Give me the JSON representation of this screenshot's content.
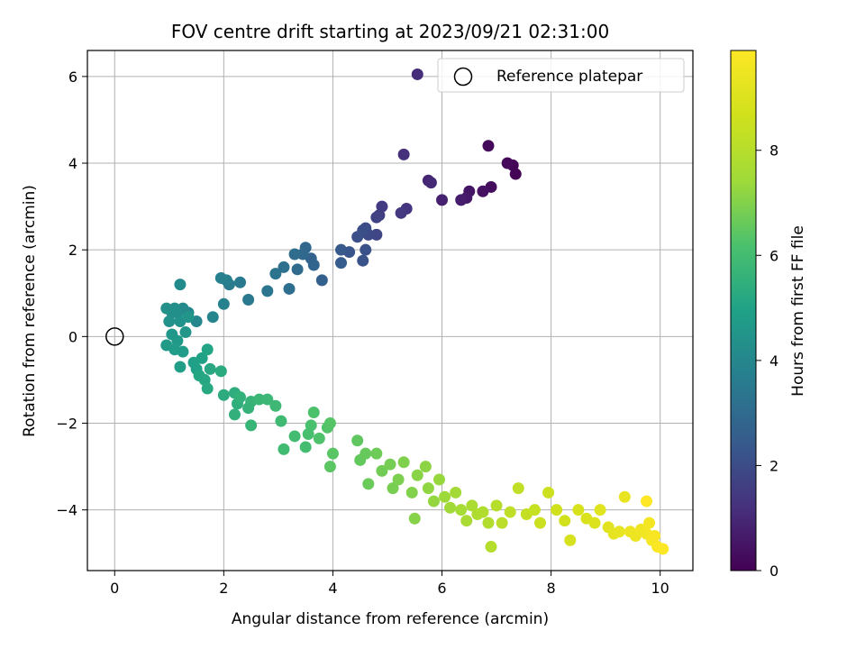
{
  "chart_data": {
    "type": "scatter",
    "title": "FOV centre drift starting at 2023/09/21 02:31:00",
    "xlabel": "Angular distance from reference (arcmin)",
    "ylabel": "Rotation from reference (arcmin)",
    "xlim": [
      -0.5,
      10.6
    ],
    "ylim": [
      -5.4,
      6.6
    ],
    "xticks": [
      0,
      2,
      4,
      6,
      8,
      10
    ],
    "yticks": [
      -4,
      -2,
      0,
      2,
      4,
      6
    ],
    "grid": true,
    "legend": {
      "placement": "top-right",
      "entries": [
        "Reference platepar"
      ]
    },
    "reference_point": {
      "x": 0,
      "y": 0,
      "label": "Reference platepar"
    },
    "colorbar": {
      "label": "Hours from first FF file",
      "range": [
        0,
        9.9
      ],
      "ticks": [
        0,
        2,
        4,
        6,
        8
      ],
      "colormap": "viridis"
    },
    "points": [
      [
        7.3,
        3.95,
        0.05
      ],
      [
        7.35,
        3.75,
        0.1
      ],
      [
        7.2,
        4.0,
        0.15
      ],
      [
        6.85,
        4.4,
        0.2
      ],
      [
        6.9,
        3.45,
        0.3
      ],
      [
        6.75,
        3.35,
        0.4
      ],
      [
        6.5,
        3.35,
        0.5
      ],
      [
        6.45,
        3.2,
        0.6
      ],
      [
        6.35,
        3.15,
        0.7
      ],
      [
        6.0,
        3.15,
        0.8
      ],
      [
        5.75,
        3.6,
        0.9
      ],
      [
        5.8,
        3.55,
        1.0
      ],
      [
        5.55,
        6.05,
        1.1
      ],
      [
        5.3,
        4.2,
        1.2
      ],
      [
        5.35,
        2.95,
        1.3
      ],
      [
        5.25,
        2.85,
        1.4
      ],
      [
        4.9,
        3.0,
        1.5
      ],
      [
        4.85,
        2.8,
        1.6
      ],
      [
        4.8,
        2.75,
        1.7
      ],
      [
        4.8,
        2.35,
        1.8
      ],
      [
        4.65,
        2.35,
        1.9
      ],
      [
        4.6,
        2.5,
        2.0
      ],
      [
        4.55,
        2.45,
        2.05
      ],
      [
        4.45,
        2.3,
        2.1
      ],
      [
        4.6,
        2.0,
        2.15
      ],
      [
        4.55,
        1.75,
        2.2
      ],
      [
        4.3,
        1.95,
        2.3
      ],
      [
        4.15,
        2.0,
        2.4
      ],
      [
        4.15,
        1.7,
        2.5
      ],
      [
        3.8,
        1.3,
        2.6
      ],
      [
        3.6,
        1.8,
        2.7
      ],
      [
        3.65,
        1.65,
        2.8
      ],
      [
        3.5,
        2.05,
        2.85
      ],
      [
        3.45,
        1.9,
        2.9
      ],
      [
        3.35,
        1.55,
        3.0
      ],
      [
        3.3,
        1.9,
        3.05
      ],
      [
        3.2,
        1.1,
        3.1
      ],
      [
        3.1,
        1.6,
        3.2
      ],
      [
        2.95,
        1.45,
        3.3
      ],
      [
        2.8,
        1.05,
        3.4
      ],
      [
        2.45,
        0.85,
        3.5
      ],
      [
        2.3,
        1.25,
        3.55
      ],
      [
        2.1,
        1.2,
        3.6
      ],
      [
        2.05,
        1.3,
        3.7
      ],
      [
        1.95,
        1.35,
        3.75
      ],
      [
        2.0,
        0.75,
        3.8
      ],
      [
        1.8,
        0.45,
        3.9
      ],
      [
        1.5,
        0.35,
        4.0
      ],
      [
        1.35,
        0.55,
        4.05
      ],
      [
        1.25,
        0.65,
        4.1
      ],
      [
        1.2,
        1.2,
        4.15
      ],
      [
        1.15,
        0.55,
        4.2
      ],
      [
        1.1,
        0.65,
        4.25
      ],
      [
        1.05,
        0.55,
        4.3
      ],
      [
        0.95,
        0.65,
        4.35
      ],
      [
        1.0,
        0.35,
        4.4
      ],
      [
        1.2,
        0.35,
        4.45
      ],
      [
        1.35,
        0.45,
        4.5
      ],
      [
        1.3,
        0.1,
        4.55
      ],
      [
        1.05,
        0.05,
        4.6
      ],
      [
        1.15,
        -0.1,
        4.65
      ],
      [
        0.95,
        -0.2,
        4.7
      ],
      [
        1.1,
        -0.3,
        4.75
      ],
      [
        1.25,
        -0.35,
        4.8
      ],
      [
        1.2,
        -0.7,
        4.85
      ],
      [
        1.45,
        -0.6,
        4.9
      ],
      [
        1.5,
        -0.75,
        4.95
      ],
      [
        1.6,
        -0.5,
        5.0
      ],
      [
        1.7,
        -0.3,
        5.05
      ],
      [
        1.55,
        -0.9,
        5.1
      ],
      [
        1.65,
        -1.0,
        5.15
      ],
      [
        1.75,
        -0.75,
        5.2
      ],
      [
        1.7,
        -1.2,
        5.25
      ],
      [
        1.95,
        -0.8,
        5.3
      ],
      [
        2.0,
        -1.35,
        5.35
      ],
      [
        2.2,
        -1.3,
        5.4
      ],
      [
        2.25,
        -1.55,
        5.45
      ],
      [
        2.2,
        -1.8,
        5.5
      ],
      [
        2.3,
        -1.4,
        5.55
      ],
      [
        2.45,
        -1.65,
        5.6
      ],
      [
        2.5,
        -1.5,
        5.65
      ],
      [
        2.5,
        -2.05,
        5.7
      ],
      [
        2.65,
        -1.45,
        5.75
      ],
      [
        2.8,
        -1.45,
        5.8
      ],
      [
        2.95,
        -1.6,
        5.85
      ],
      [
        3.05,
        -1.95,
        5.9
      ],
      [
        3.1,
        -2.6,
        5.95
      ],
      [
        3.3,
        -2.3,
        6.0
      ],
      [
        3.5,
        -2.55,
        6.05
      ],
      [
        3.55,
        -2.25,
        6.1
      ],
      [
        3.6,
        -2.05,
        6.15
      ],
      [
        3.65,
        -1.75,
        6.2
      ],
      [
        3.75,
        -2.35,
        6.25
      ],
      [
        3.9,
        -2.1,
        6.3
      ],
      [
        3.95,
        -2.0,
        6.35
      ],
      [
        4.0,
        -2.7,
        6.4
      ],
      [
        3.95,
        -3.0,
        6.45
      ],
      [
        4.45,
        -2.4,
        6.5
      ],
      [
        4.5,
        -2.85,
        6.55
      ],
      [
        4.6,
        -2.7,
        6.6
      ],
      [
        4.65,
        -3.4,
        6.65
      ],
      [
        4.8,
        -2.7,
        6.7
      ],
      [
        4.9,
        -3.1,
        6.75
      ],
      [
        5.05,
        -2.95,
        6.8
      ],
      [
        5.1,
        -3.5,
        6.85
      ],
      [
        5.2,
        -3.3,
        6.9
      ],
      [
        5.3,
        -2.9,
        6.95
      ],
      [
        5.45,
        -3.6,
        7.0
      ],
      [
        5.5,
        -4.2,
        7.05
      ],
      [
        5.55,
        -3.2,
        7.1
      ],
      [
        5.7,
        -3.0,
        7.15
      ],
      [
        5.75,
        -3.5,
        7.2
      ],
      [
        5.85,
        -3.8,
        7.25
      ],
      [
        5.95,
        -3.3,
        7.3
      ],
      [
        6.05,
        -3.7,
        7.4
      ],
      [
        6.15,
        -3.95,
        7.45
      ],
      [
        6.25,
        -3.6,
        7.5
      ],
      [
        6.35,
        -4.0,
        7.6
      ],
      [
        6.45,
        -4.25,
        7.65
      ],
      [
        6.55,
        -3.9,
        7.7
      ],
      [
        6.65,
        -4.1,
        7.8
      ],
      [
        6.75,
        -4.05,
        7.85
      ],
      [
        6.85,
        -4.3,
        7.9
      ],
      [
        6.9,
        -4.85,
        7.95
      ],
      [
        7.0,
        -3.9,
        8.0
      ],
      [
        7.1,
        -4.3,
        8.1
      ],
      [
        7.25,
        -4.05,
        8.2
      ],
      [
        7.4,
        -3.5,
        8.25
      ],
      [
        7.55,
        -4.1,
        8.35
      ],
      [
        7.7,
        -4.0,
        8.4
      ],
      [
        7.8,
        -4.3,
        8.5
      ],
      [
        7.95,
        -3.6,
        8.55
      ],
      [
        8.1,
        -4.0,
        8.65
      ],
      [
        8.25,
        -4.25,
        8.7
      ],
      [
        8.35,
        -4.7,
        8.8
      ],
      [
        8.5,
        -4.0,
        8.85
      ],
      [
        8.65,
        -4.2,
        8.95
      ],
      [
        8.8,
        -4.3,
        9.0
      ],
      [
        8.9,
        -4.0,
        9.1
      ],
      [
        9.05,
        -4.4,
        9.15
      ],
      [
        9.15,
        -4.55,
        9.25
      ],
      [
        9.25,
        -4.5,
        9.3
      ],
      [
        9.35,
        -3.7,
        9.35
      ],
      [
        9.45,
        -4.5,
        9.45
      ],
      [
        9.55,
        -4.6,
        9.5
      ],
      [
        9.65,
        -4.45,
        9.55
      ],
      [
        9.75,
        -4.55,
        9.6
      ],
      [
        9.8,
        -4.3,
        9.65
      ],
      [
        9.85,
        -4.7,
        9.7
      ],
      [
        9.9,
        -4.6,
        9.75
      ],
      [
        9.95,
        -4.85,
        9.8
      ],
      [
        10.05,
        -4.9,
        9.85
      ],
      [
        9.75,
        -3.8,
        9.9
      ]
    ]
  }
}
